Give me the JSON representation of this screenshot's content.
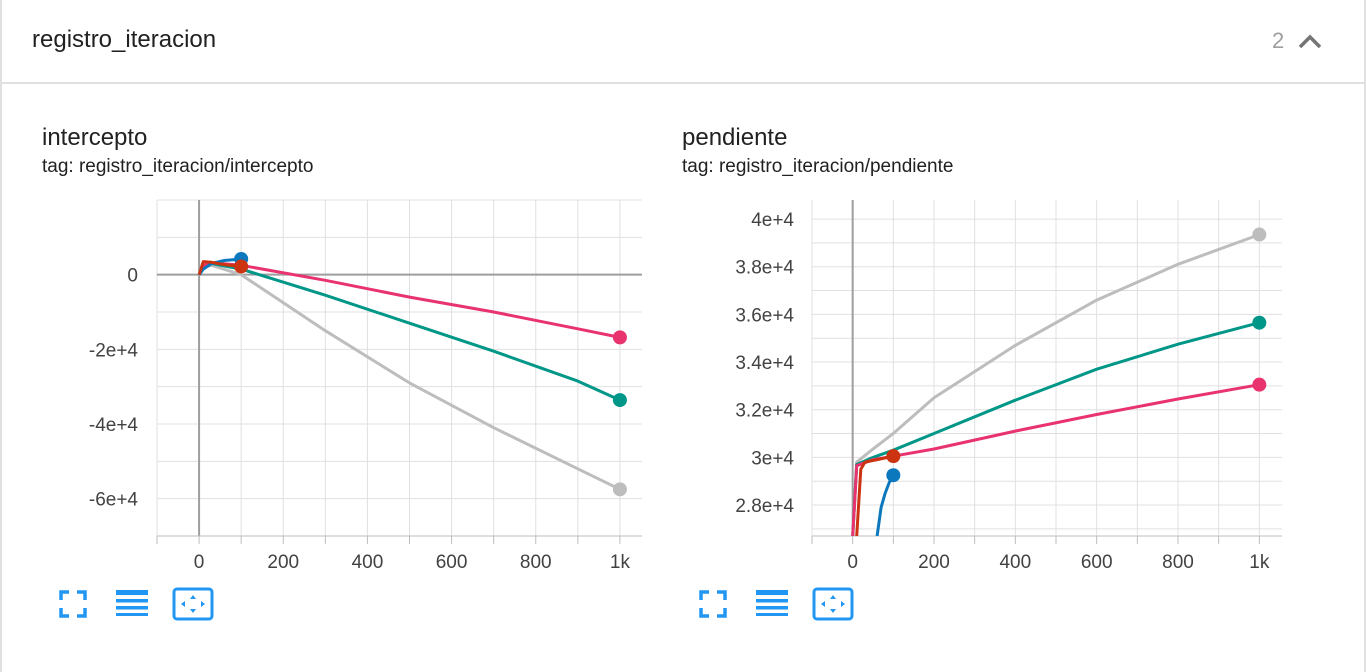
{
  "section": {
    "title": "registro_iteracion",
    "count": "2",
    "collapse_icon": "chevron-up-icon"
  },
  "colors": {
    "pink": "#e8336e",
    "teal": "#009688",
    "gray": "#bdbdbd",
    "blue": "#0b78be",
    "orange": "#cc3311",
    "icon_blue": "#2196f3"
  },
  "cards": [
    {
      "title": "intercepto",
      "tag": "tag: registro_iteracion/intercepto",
      "toolbar": [
        "fullscreen-icon",
        "toggle-y-log-icon",
        "fit-domain-icon"
      ]
    },
    {
      "title": "pendiente",
      "tag": "tag: registro_iteracion/pendiente",
      "toolbar": [
        "fullscreen-icon",
        "toggle-y-log-icon",
        "fit-domain-icon"
      ]
    }
  ],
  "chart_data": [
    {
      "type": "line",
      "title": "intercepto",
      "xlabel": "",
      "ylabel": "",
      "xlim": [
        -100,
        1100
      ],
      "ylim": [
        -70000,
        20000
      ],
      "x_ticks": [
        0,
        200,
        400,
        600,
        800,
        1000
      ],
      "x_tick_labels": [
        "0",
        "200",
        "400",
        "600",
        "800",
        "1k"
      ],
      "y_ticks": [
        0,
        -20000,
        -40000,
        -60000
      ],
      "y_tick_labels": [
        "0",
        "-2e+4",
        "-4e+4",
        "-6e+4"
      ],
      "grid": true,
      "series": [
        {
          "color": "#bdbdbd",
          "x": [
            0,
            10,
            30,
            100,
            300,
            500,
            700,
            900,
            1000
          ],
          "y": [
            0,
            2000,
            2500,
            0,
            -15000,
            -29000,
            -41000,
            -52000,
            -57500
          ]
        },
        {
          "color": "#009688",
          "x": [
            0,
            10,
            30,
            100,
            300,
            500,
            700,
            900,
            1000
          ],
          "y": [
            0,
            2000,
            3000,
            1500,
            -5500,
            -13000,
            -20500,
            -28500,
            -33600
          ]
        },
        {
          "color": "#e8336e",
          "x": [
            0,
            10,
            30,
            100,
            300,
            500,
            700,
            900,
            1000
          ],
          "y": [
            0,
            2500,
            3200,
            2500,
            -1500,
            -6000,
            -10000,
            -14500,
            -16800
          ]
        },
        {
          "color": "#0b78be",
          "x": [
            0,
            10,
            30,
            60,
            100
          ],
          "y": [
            0,
            1500,
            3000,
            3800,
            4200
          ]
        },
        {
          "color": "#cc3311",
          "x": [
            0,
            10,
            30,
            60,
            100
          ],
          "y": [
            0,
            3500,
            3300,
            2700,
            2200
          ]
        }
      ]
    },
    {
      "type": "line",
      "title": "pendiente",
      "xlabel": "",
      "ylabel": "",
      "xlim": [
        -100,
        1100
      ],
      "ylim": [
        26700,
        40800
      ],
      "x_ticks": [
        0,
        200,
        400,
        600,
        800,
        1000
      ],
      "x_tick_labels": [
        "0",
        "200",
        "400",
        "600",
        "800",
        "1k"
      ],
      "y_ticks": [
        28000,
        30000,
        32000,
        34000,
        36000,
        38000,
        40000
      ],
      "y_tick_labels": [
        "2.8e+4",
        "3e+4",
        "3.2e+4",
        "3.4e+4",
        "3.6e+4",
        "3.8e+4",
        "4e+4"
      ],
      "grid": true,
      "series": [
        {
          "color": "#bdbdbd",
          "x": [
            0,
            10,
            50,
            100,
            200,
            400,
            600,
            800,
            1000
          ],
          "y": [
            26700,
            29800,
            30350,
            31000,
            32500,
            34700,
            36600,
            38100,
            39350
          ]
        },
        {
          "color": "#009688",
          "x": [
            0,
            10,
            50,
            100,
            200,
            400,
            600,
            800,
            1000
          ],
          "y": [
            26700,
            29700,
            30000,
            30300,
            31000,
            32400,
            33700,
            34750,
            35650
          ]
        },
        {
          "color": "#e8336e",
          "x": [
            0,
            10,
            50,
            100,
            200,
            400,
            600,
            800,
            1000
          ],
          "y": [
            26700,
            29650,
            29900,
            30050,
            30350,
            31100,
            31800,
            32450,
            33050
          ]
        },
        {
          "color": "#cc3311",
          "x": [
            10,
            20,
            30,
            60,
            100
          ],
          "y": [
            26700,
            29500,
            29800,
            29900,
            30050
          ]
        },
        {
          "color": "#0b78be",
          "x": [
            60,
            70,
            80,
            90,
            100
          ],
          "y": [
            26700,
            27900,
            28500,
            28950,
            29250
          ]
        }
      ]
    }
  ]
}
